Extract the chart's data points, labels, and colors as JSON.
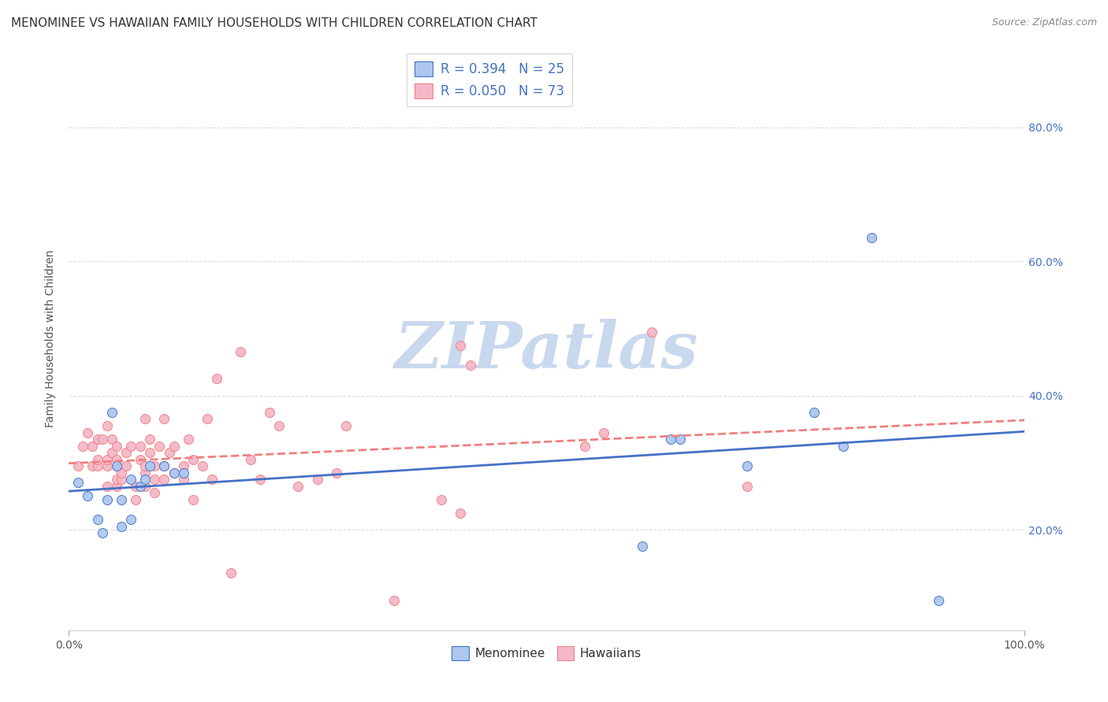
{
  "title": "MENOMINEE VS HAWAIIAN FAMILY HOUSEHOLDS WITH CHILDREN CORRELATION CHART",
  "source": "Source: ZipAtlas.com",
  "xlabel": "",
  "ylabel": "Family Households with Children",
  "watermark": "ZIPatlas",
  "xlim": [
    0,
    1.0
  ],
  "ylim": [
    0.05,
    0.92
  ],
  "xticks": [
    0.0,
    1.0
  ],
  "yticks": [
    0.2,
    0.4,
    0.6,
    0.8
  ],
  "ytick_labels": [
    "20.0%",
    "40.0%",
    "60.0%",
    "80.0%"
  ],
  "xtick_labels": [
    "0.0%",
    "100.0%"
  ],
  "menominee_color": "#aec6f0",
  "hawaiian_color": "#f4b8c8",
  "menominee_line_color": "#4472c4",
  "hawaiian_line_color": "#f08080",
  "legend_R_menominee": "0.394",
  "legend_N_menominee": "25",
  "legend_R_hawaiian": "0.050",
  "legend_N_hawaiian": "73",
  "menominee_scatter": [
    [
      0.01,
      0.27
    ],
    [
      0.02,
      0.25
    ],
    [
      0.03,
      0.215
    ],
    [
      0.035,
      0.195
    ],
    [
      0.04,
      0.245
    ],
    [
      0.045,
      0.375
    ],
    [
      0.05,
      0.295
    ],
    [
      0.055,
      0.245
    ],
    [
      0.055,
      0.205
    ],
    [
      0.065,
      0.215
    ],
    [
      0.065,
      0.275
    ],
    [
      0.075,
      0.265
    ],
    [
      0.08,
      0.275
    ],
    [
      0.085,
      0.295
    ],
    [
      0.1,
      0.295
    ],
    [
      0.11,
      0.285
    ],
    [
      0.12,
      0.285
    ],
    [
      0.6,
      0.175
    ],
    [
      0.63,
      0.335
    ],
    [
      0.64,
      0.335
    ],
    [
      0.71,
      0.295
    ],
    [
      0.78,
      0.375
    ],
    [
      0.81,
      0.325
    ],
    [
      0.84,
      0.635
    ],
    [
      0.91,
      0.095
    ]
  ],
  "hawaiian_scatter": [
    [
      0.01,
      0.295
    ],
    [
      0.015,
      0.325
    ],
    [
      0.02,
      0.345
    ],
    [
      0.025,
      0.295
    ],
    [
      0.025,
      0.325
    ],
    [
      0.03,
      0.335
    ],
    [
      0.03,
      0.295
    ],
    [
      0.03,
      0.305
    ],
    [
      0.035,
      0.335
    ],
    [
      0.04,
      0.355
    ],
    [
      0.04,
      0.265
    ],
    [
      0.04,
      0.295
    ],
    [
      0.04,
      0.305
    ],
    [
      0.045,
      0.315
    ],
    [
      0.045,
      0.335
    ],
    [
      0.05,
      0.265
    ],
    [
      0.05,
      0.275
    ],
    [
      0.05,
      0.295
    ],
    [
      0.05,
      0.305
    ],
    [
      0.05,
      0.325
    ],
    [
      0.055,
      0.275
    ],
    [
      0.055,
      0.285
    ],
    [
      0.06,
      0.295
    ],
    [
      0.06,
      0.315
    ],
    [
      0.065,
      0.325
    ],
    [
      0.07,
      0.245
    ],
    [
      0.07,
      0.265
    ],
    [
      0.075,
      0.305
    ],
    [
      0.075,
      0.325
    ],
    [
      0.08,
      0.365
    ],
    [
      0.08,
      0.265
    ],
    [
      0.08,
      0.285
    ],
    [
      0.08,
      0.295
    ],
    [
      0.085,
      0.315
    ],
    [
      0.085,
      0.335
    ],
    [
      0.09,
      0.255
    ],
    [
      0.09,
      0.275
    ],
    [
      0.09,
      0.295
    ],
    [
      0.095,
      0.325
    ],
    [
      0.1,
      0.365
    ],
    [
      0.1,
      0.275
    ],
    [
      0.1,
      0.295
    ],
    [
      0.105,
      0.315
    ],
    [
      0.11,
      0.285
    ],
    [
      0.11,
      0.325
    ],
    [
      0.12,
      0.275
    ],
    [
      0.12,
      0.295
    ],
    [
      0.125,
      0.335
    ],
    [
      0.13,
      0.245
    ],
    [
      0.13,
      0.305
    ],
    [
      0.14,
      0.295
    ],
    [
      0.145,
      0.365
    ],
    [
      0.15,
      0.275
    ],
    [
      0.155,
      0.425
    ],
    [
      0.17,
      0.135
    ],
    [
      0.18,
      0.465
    ],
    [
      0.19,
      0.305
    ],
    [
      0.2,
      0.275
    ],
    [
      0.21,
      0.375
    ],
    [
      0.22,
      0.355
    ],
    [
      0.24,
      0.265
    ],
    [
      0.26,
      0.275
    ],
    [
      0.28,
      0.285
    ],
    [
      0.29,
      0.355
    ],
    [
      0.34,
      0.095
    ],
    [
      0.39,
      0.245
    ],
    [
      0.41,
      0.225
    ],
    [
      0.41,
      0.475
    ],
    [
      0.42,
      0.445
    ],
    [
      0.54,
      0.325
    ],
    [
      0.56,
      0.345
    ],
    [
      0.61,
      0.495
    ],
    [
      0.71,
      0.265
    ]
  ],
  "background_color": "#ffffff",
  "grid_color": "#dddddd",
  "title_fontsize": 11,
  "axis_label_fontsize": 10,
  "tick_fontsize": 10,
  "watermark_color": "#c8d8ee",
  "watermark_fontsize": 60
}
